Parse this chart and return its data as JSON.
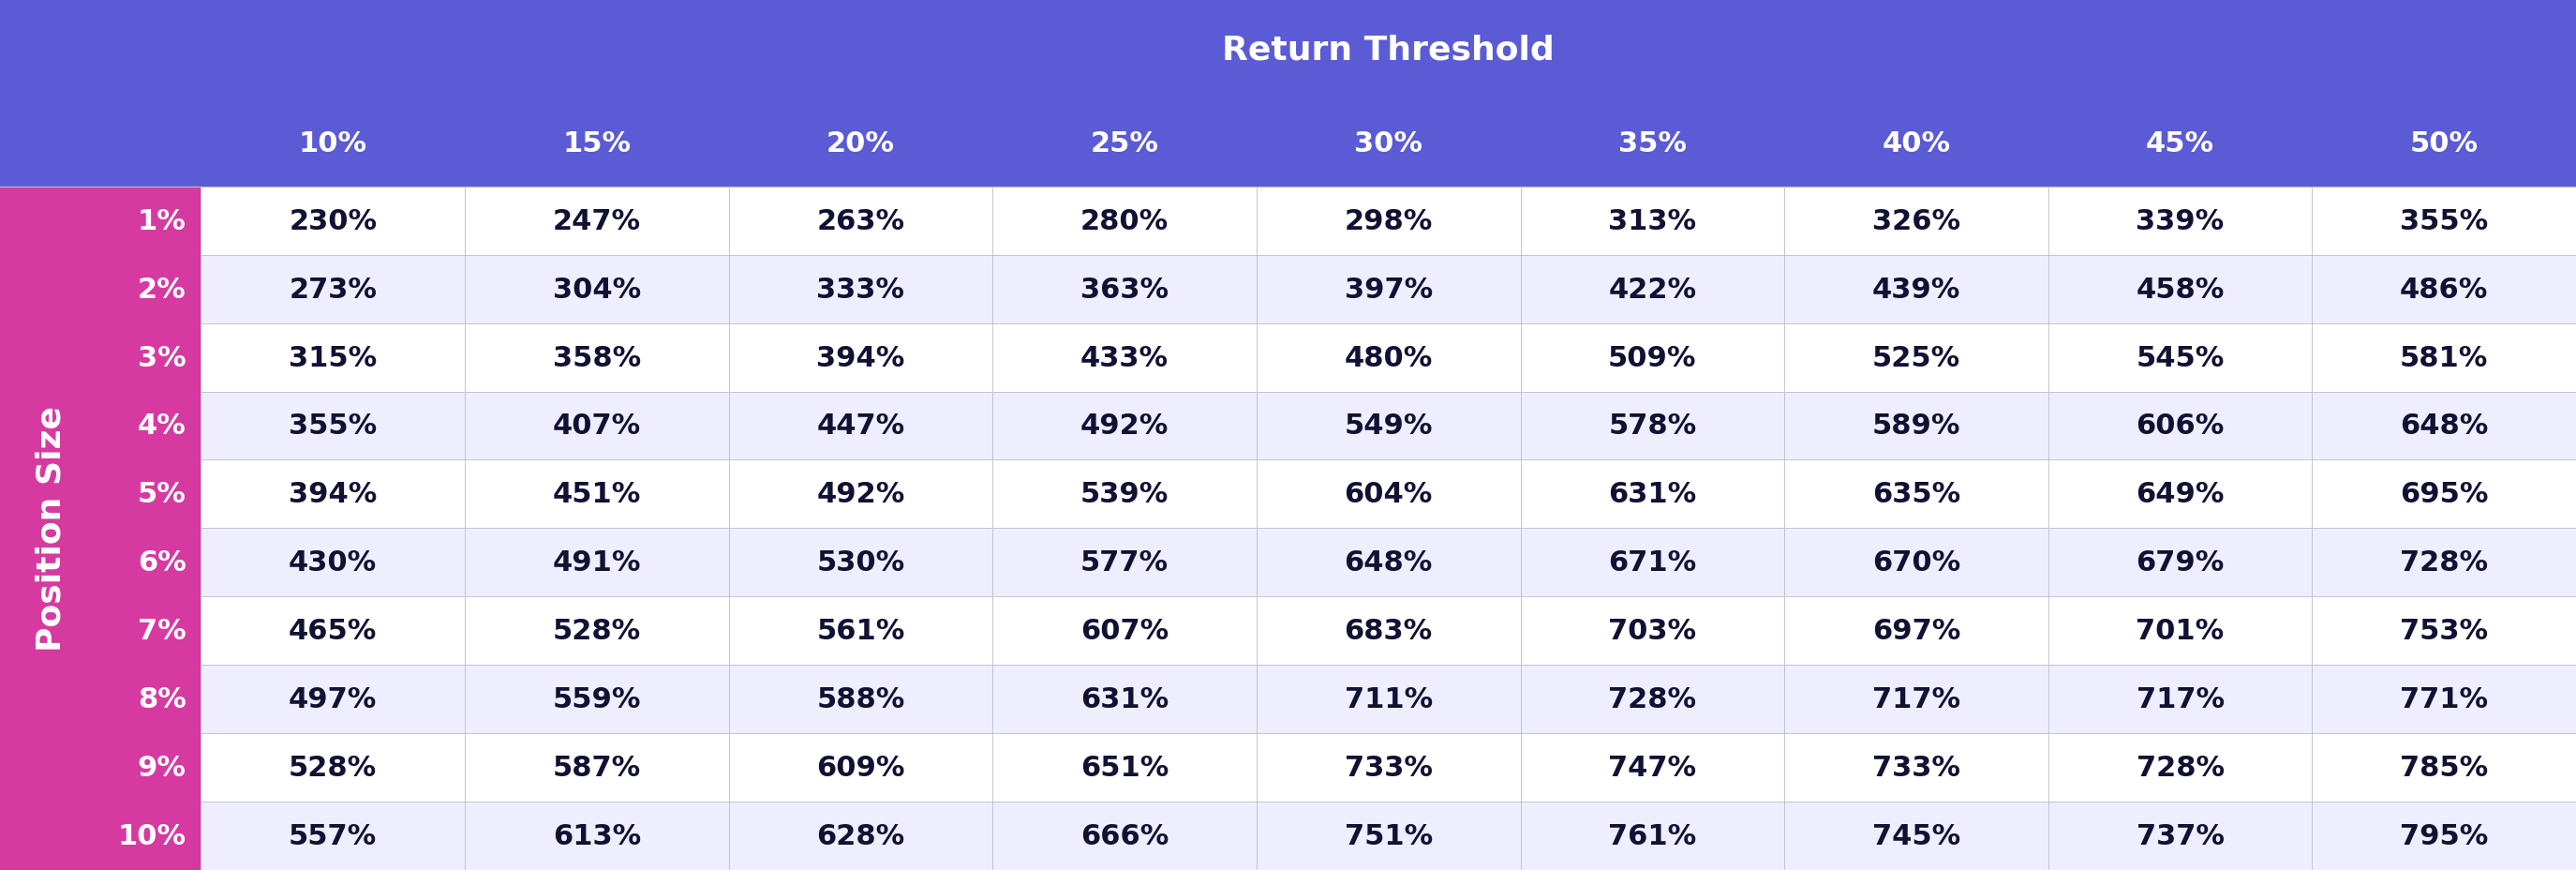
{
  "title": "Return Threshold",
  "col_label": "Position Size",
  "col_headers": [
    "10%",
    "15%",
    "20%",
    "25%",
    "30%",
    "35%",
    "40%",
    "45%",
    "50%"
  ],
  "row_headers": [
    "1%",
    "2%",
    "3%",
    "4%",
    "5%",
    "6%",
    "7%",
    "8%",
    "9%",
    "10%"
  ],
  "table_data": [
    [
      "230%",
      "247%",
      "263%",
      "280%",
      "298%",
      "313%",
      "326%",
      "339%",
      "355%"
    ],
    [
      "273%",
      "304%",
      "333%",
      "363%",
      "397%",
      "422%",
      "439%",
      "458%",
      "486%"
    ],
    [
      "315%",
      "358%",
      "394%",
      "433%",
      "480%",
      "509%",
      "525%",
      "545%",
      "581%"
    ],
    [
      "355%",
      "407%",
      "447%",
      "492%",
      "549%",
      "578%",
      "589%",
      "606%",
      "648%"
    ],
    [
      "394%",
      "451%",
      "492%",
      "539%",
      "604%",
      "631%",
      "635%",
      "649%",
      "695%"
    ],
    [
      "430%",
      "491%",
      "530%",
      "577%",
      "648%",
      "671%",
      "670%",
      "679%",
      "728%"
    ],
    [
      "465%",
      "528%",
      "561%",
      "607%",
      "683%",
      "703%",
      "697%",
      "701%",
      "753%"
    ],
    [
      "497%",
      "559%",
      "588%",
      "631%",
      "711%",
      "728%",
      "717%",
      "717%",
      "771%"
    ],
    [
      "528%",
      "587%",
      "609%",
      "651%",
      "733%",
      "747%",
      "733%",
      "728%",
      "785%"
    ],
    [
      "557%",
      "613%",
      "628%",
      "666%",
      "751%",
      "761%",
      "745%",
      "737%",
      "795%"
    ]
  ],
  "header_bg_color": "#5B5BD6",
  "row_label_bg_color": "#D63AA0",
  "triangle_color": "#5B5BD6",
  "header_text_color": "#FFFFFF",
  "row_label_text_color": "#FFFFFF",
  "data_text_color": "#111133",
  "alt_row_color": "#EEEEFF",
  "white_row_color": "#FFFFFF",
  "grid_line_color": "#BBBBCC",
  "title_fontsize": 26,
  "header_fontsize": 22,
  "cell_fontsize": 22,
  "row_label_fontsize": 22,
  "axis_label_fontsize": 26
}
